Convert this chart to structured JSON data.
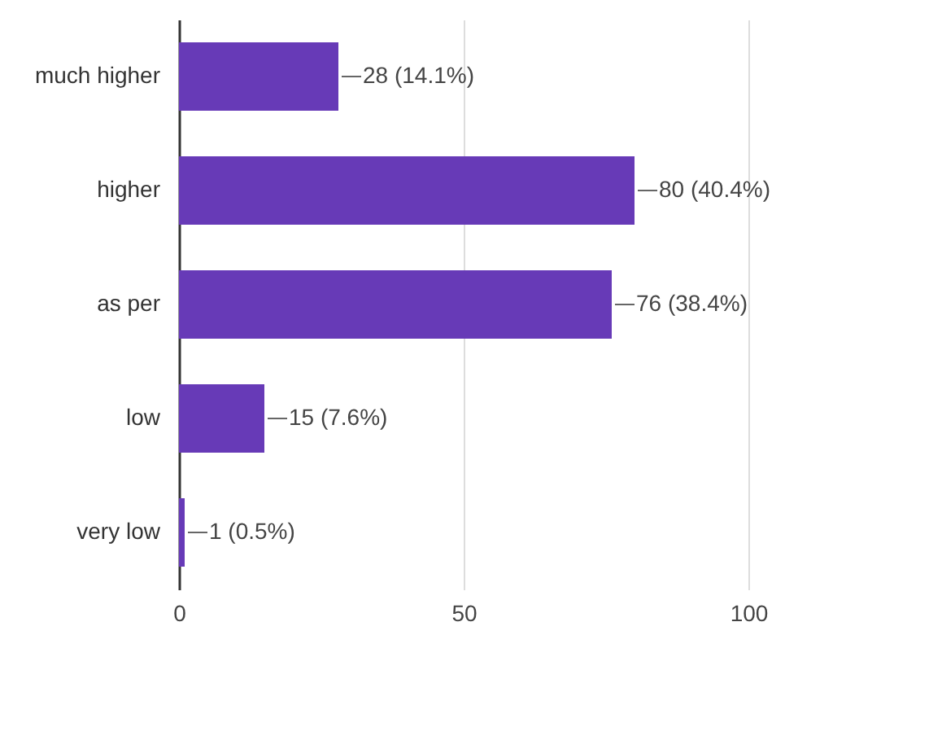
{
  "chart_data": {
    "type": "bar",
    "orientation": "horizontal",
    "categories": [
      "much higher",
      "higher",
      "as per",
      "low",
      "very low"
    ],
    "values": [
      28,
      80,
      76,
      15,
      1
    ],
    "value_labels": [
      "28 (14.1%)",
      "80 (40.4%)",
      "76 (38.4%)",
      "15 (7.6%)",
      "1 (0.5%)"
    ],
    "color": "#673ab7",
    "xlim": [
      0,
      100
    ],
    "xticks": [
      0,
      50,
      100
    ],
    "grid": "x"
  }
}
